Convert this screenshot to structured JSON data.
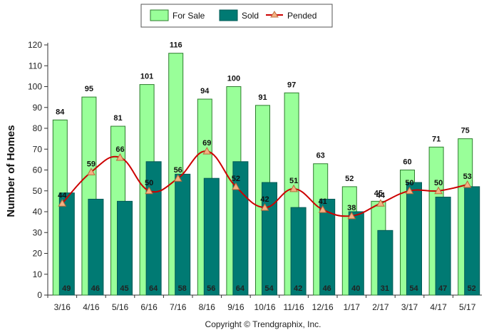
{
  "chart_data": {
    "type": "bar",
    "title": "",
    "xlabel": "",
    "ylabel": "Number of Homes",
    "ylim": [
      0,
      120
    ],
    "yticks": [
      0,
      10,
      20,
      30,
      40,
      50,
      60,
      70,
      80,
      90,
      100,
      110,
      120
    ],
    "grid": false,
    "legend_position": "top-center",
    "categories": [
      "3/16",
      "4/16",
      "5/16",
      "6/16",
      "7/16",
      "8/16",
      "9/16",
      "10/16",
      "11/16",
      "12/16",
      "1/17",
      "2/17",
      "3/17",
      "4/17",
      "5/17"
    ],
    "series": [
      {
        "name": "For Sale",
        "kind": "bar",
        "color": "#99ff99",
        "stroke": "#2e7d2e",
        "values": [
          84,
          95,
          81,
          101,
          116,
          94,
          100,
          91,
          97,
          63,
          52,
          45,
          60,
          71,
          75
        ]
      },
      {
        "name": "Sold",
        "kind": "bar",
        "color": "#007a73",
        "stroke": "#005a55",
        "values": [
          49,
          46,
          45,
          64,
          58,
          56,
          64,
          54,
          42,
          46,
          40,
          31,
          54,
          47,
          52
        ]
      },
      {
        "name": "Pended",
        "kind": "line",
        "color": "#cc0000",
        "marker_color": "#f4b183",
        "values": [
          44,
          59,
          66,
          50,
          56,
          69,
          52,
          42,
          51,
          41,
          38,
          44,
          50,
          50,
          53
        ]
      }
    ],
    "footer": "Copyright © Trendgraphix, Inc."
  }
}
